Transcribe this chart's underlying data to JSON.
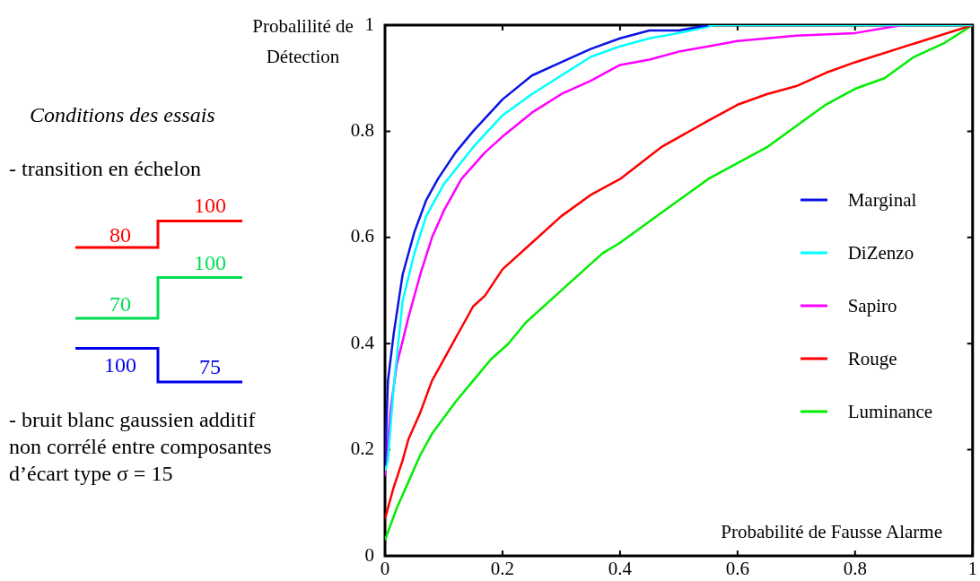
{
  "chart_data": {
    "type": "line",
    "xlabel": "Probabilité de Fausse Alarme",
    "ylabel": "Probalilité de Détection",
    "xlim": [
      0,
      1
    ],
    "ylim": [
      0,
      1
    ],
    "xticks": [
      0,
      0.2,
      0.4,
      0.6,
      0.8,
      1
    ],
    "yticks": [
      0,
      0.2,
      0.4,
      0.6,
      0.8,
      1
    ],
    "legend": "right",
    "marker": "none",
    "line_style": "solid",
    "annotations": [
      "Conditions des essais",
      "- transition en échelon",
      "80",
      "100",
      "70",
      "100",
      "100",
      "75",
      "- bruit blanc gaussien additif",
      "non corrélé entre composantes",
      "d’écart type σ = 15"
    ],
    "series": [
      {
        "name": "Marginal",
        "color": "#0a14e6",
        "x": [
          0,
          0.005,
          0.015,
          0.03,
          0.05,
          0.07,
          0.09,
          0.12,
          0.15,
          0.2,
          0.25,
          0.3,
          0.35,
          0.4,
          0.45,
          0.5,
          0.55
        ],
        "values": [
          0.17,
          0.33,
          0.42,
          0.53,
          0.61,
          0.67,
          0.71,
          0.76,
          0.8,
          0.86,
          0.905,
          0.93,
          0.955,
          0.975,
          0.99,
          0.99,
          1
        ]
      },
      {
        "name": "DiZenzo",
        "color": "#00ffff",
        "x": [
          0,
          0.005,
          0.015,
          0.03,
          0.05,
          0.07,
          0.1,
          0.15,
          0.2,
          0.25,
          0.3,
          0.35,
          0.4,
          0.45,
          0.5,
          0.56,
          1
        ],
        "values": [
          0.16,
          0.18,
          0.32,
          0.48,
          0.57,
          0.64,
          0.7,
          0.77,
          0.83,
          0.87,
          0.905,
          0.94,
          0.96,
          0.975,
          0.985,
          1,
          1
        ]
      },
      {
        "name": "Sapiro",
        "color": "#ff00ff",
        "x": [
          0,
          0.01,
          0.02,
          0.04,
          0.06,
          0.08,
          0.1,
          0.13,
          0.17,
          0.2,
          0.25,
          0.3,
          0.35,
          0.4,
          0.45,
          0.5,
          0.55,
          0.6,
          0.7,
          0.8,
          0.88
        ],
        "values": [
          0.15,
          0.28,
          0.36,
          0.45,
          0.53,
          0.6,
          0.65,
          0.71,
          0.76,
          0.79,
          0.835,
          0.87,
          0.895,
          0.925,
          0.935,
          0.95,
          0.96,
          0.97,
          0.98,
          0.985,
          1
        ]
      },
      {
        "name": "Rouge",
        "color": "#ff0000",
        "x": [
          0,
          0.015,
          0.03,
          0.04,
          0.06,
          0.08,
          0.11,
          0.15,
          0.17,
          0.2,
          0.25,
          0.3,
          0.35,
          0.4,
          0.47,
          0.55,
          0.6,
          0.65,
          0.7,
          0.75,
          0.8,
          0.9,
          1
        ],
        "values": [
          0.07,
          0.13,
          0.18,
          0.22,
          0.27,
          0.33,
          0.39,
          0.47,
          0.49,
          0.54,
          0.59,
          0.64,
          0.68,
          0.71,
          0.77,
          0.82,
          0.85,
          0.87,
          0.885,
          0.91,
          0.93,
          0.965,
          1
        ]
      },
      {
        "name": "Luminance",
        "color": "#00ee00",
        "x": [
          0,
          0.01,
          0.02,
          0.04,
          0.06,
          0.08,
          0.1,
          0.12,
          0.15,
          0.18,
          0.21,
          0.24,
          0.28,
          0.32,
          0.37,
          0.4,
          0.45,
          0.5,
          0.55,
          0.6,
          0.65,
          0.7,
          0.75,
          0.8,
          0.85,
          0.9,
          0.95,
          1
        ],
        "values": [
          0.03,
          0.06,
          0.09,
          0.14,
          0.19,
          0.23,
          0.26,
          0.29,
          0.33,
          0.37,
          0.4,
          0.44,
          0.48,
          0.52,
          0.57,
          0.59,
          0.63,
          0.67,
          0.71,
          0.74,
          0.77,
          0.81,
          0.85,
          0.88,
          0.9,
          0.94,
          0.965,
          1
        ]
      }
    ]
  }
}
